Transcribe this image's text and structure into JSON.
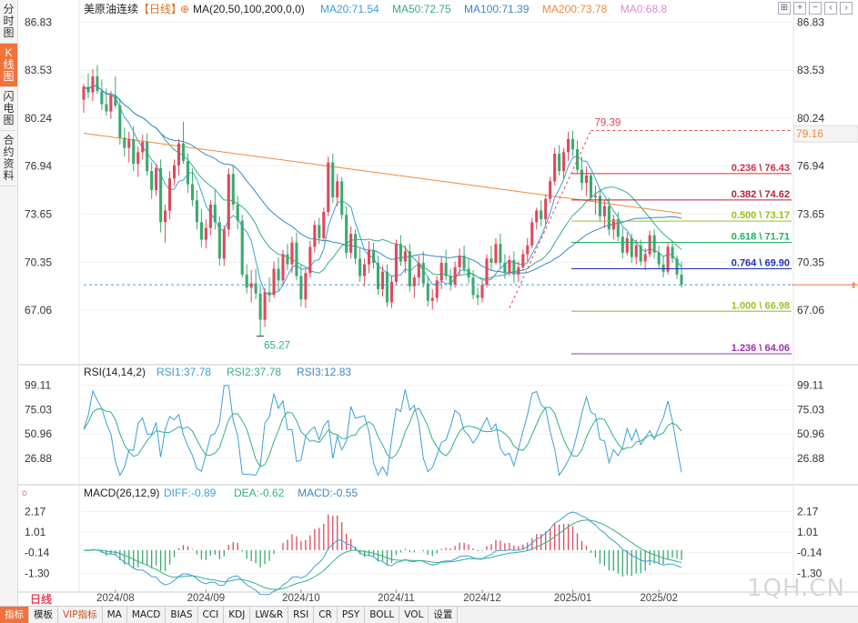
{
  "side_tabs": [
    {
      "label": "分时图",
      "active": false
    },
    {
      "label": "K线图",
      "active": true
    },
    {
      "label": "闪电图",
      "active": false
    },
    {
      "label": "合约资料",
      "active": false
    }
  ],
  "toolbar_icons": [
    "expand-icon",
    "zoom-in-icon",
    "zoom-out-icon",
    "arrow-left-icon",
    "arrow-right-icon"
  ],
  "toolbar_glyphs": [
    "⊞",
    "+",
    "−",
    "‹",
    "›"
  ],
  "period_label": "日线",
  "bottom_tabs": [
    "指标",
    "模板",
    "VIP指标",
    "MA",
    "MACD",
    "BIAS",
    "CCI",
    "KDJ",
    "LW&R",
    "RSI",
    "CR",
    "PSY",
    "BOLL",
    "VOL",
    "设置"
  ],
  "watermark": "1QH.CN",
  "colors": {
    "up": "#e0485a",
    "down": "#3aaa6e",
    "accent": "#f0733c",
    "ma20": "#3aa0d8",
    "ma50": "#32b08a",
    "ma100": "#3a88c8",
    "ma200": "#f08a3c",
    "ma0": "#d88ad8"
  },
  "chart_data": [
    {
      "type": "candlestick",
      "name": "price",
      "title": "美原油连续",
      "period": "【日线】",
      "indicator_label": "MA(20,50,100,200,0,0)",
      "legend": [
        {
          "text": "MA20:71.54",
          "color": "#3aa0d8"
        },
        {
          "text": "MA50:72.75",
          "color": "#32b08a"
        },
        {
          "text": "MA100:71.39",
          "color": "#3a88c8"
        },
        {
          "text": "MA200:73.78",
          "color": "#f08a3c"
        },
        {
          "text": "MA0:68.8",
          "color": "#d88ad8"
        }
      ],
      "y_ticks": [
        86.83,
        83.53,
        80.24,
        76.94,
        73.65,
        70.35,
        67.06
      ],
      "y_tick_labels": [
        "86.83",
        "83.53",
        "80.24",
        "76.94",
        "73.65",
        "70.35",
        "67.06"
      ],
      "ylim": [
        63.5,
        87.6
      ],
      "x_tick_labels": [
        "2024/08",
        "2024/09",
        "2024/10",
        "2024/11",
        "2024/12",
        "2025/01",
        "2025/02"
      ],
      "x_tick_index": [
        7,
        27,
        48,
        69,
        88,
        108,
        127
      ],
      "candles": [
        [
          81.5,
          82.6,
          80.6,
          82.4
        ],
        [
          82.4,
          83.3,
          81.6,
          82.0
        ],
        [
          82.0,
          83.6,
          81.4,
          83.1
        ],
        [
          83.1,
          83.9,
          81.9,
          82.1
        ],
        [
          82.1,
          82.9,
          80.8,
          81.2
        ],
        [
          81.2,
          82.3,
          80.4,
          80.7
        ],
        [
          80.7,
          82.1,
          80.2,
          81.8
        ],
        [
          81.8,
          83.1,
          80.9,
          81.1
        ],
        [
          81.1,
          81.6,
          78.4,
          78.9
        ],
        [
          78.9,
          79.6,
          77.6,
          78.2
        ],
        [
          78.2,
          79.3,
          77.2,
          78.8
        ],
        [
          78.8,
          79.7,
          76.6,
          77.1
        ],
        [
          77.1,
          78.3,
          76.2,
          77.9
        ],
        [
          77.9,
          79.1,
          77.4,
          78.6
        ],
        [
          78.6,
          79.2,
          76.3,
          76.6
        ],
        [
          76.6,
          77.2,
          74.7,
          75.3
        ],
        [
          75.3,
          77.1,
          74.9,
          76.8
        ],
        [
          76.8,
          77.4,
          72.4,
          73.1
        ],
        [
          73.1,
          74.3,
          71.7,
          73.9
        ],
        [
          73.9,
          76.6,
          73.3,
          76.1
        ],
        [
          76.1,
          77.4,
          75.6,
          77.0
        ],
        [
          77.0,
          78.8,
          76.3,
          78.5
        ],
        [
          78.5,
          80.0,
          77.1,
          77.3
        ],
        [
          77.3,
          77.8,
          75.1,
          75.7
        ],
        [
          75.7,
          76.8,
          74.2,
          74.6
        ],
        [
          74.6,
          75.3,
          72.6,
          73.1
        ],
        [
          73.1,
          74.0,
          71.4,
          71.9
        ],
        [
          71.9,
          73.3,
          71.3,
          72.7
        ],
        [
          72.7,
          74.6,
          72.2,
          74.3
        ],
        [
          74.3,
          75.3,
          72.6,
          73.1
        ],
        [
          73.1,
          73.5,
          70.1,
          70.6
        ],
        [
          70.6,
          72.9,
          70.1,
          72.6
        ],
        [
          72.6,
          76.8,
          72.1,
          76.4
        ],
        [
          76.4,
          77.0,
          73.9,
          74.3
        ],
        [
          74.3,
          74.9,
          72.6,
          73.2
        ],
        [
          73.2,
          73.6,
          69.3,
          69.5
        ],
        [
          69.5,
          70.2,
          68.2,
          68.6
        ],
        [
          68.6,
          69.8,
          67.6,
          68.9
        ],
        [
          68.9,
          69.9,
          67.8,
          68.2
        ],
        [
          68.2,
          68.7,
          65.3,
          66.4
        ],
        [
          66.4,
          68.6,
          65.9,
          68.3
        ],
        [
          68.3,
          69.3,
          67.6,
          68.1
        ],
        [
          68.1,
          70.4,
          67.9,
          69.9
        ],
        [
          69.9,
          70.7,
          68.4,
          69.1
        ],
        [
          69.1,
          71.2,
          68.7,
          70.9
        ],
        [
          70.9,
          71.6,
          69.8,
          70.2
        ],
        [
          70.2,
          72.1,
          69.6,
          71.7
        ],
        [
          71.7,
          72.4,
          69.1,
          69.4
        ],
        [
          69.4,
          70.2,
          67.3,
          67.8
        ],
        [
          67.8,
          69.9,
          67.2,
          69.6
        ],
        [
          69.6,
          71.8,
          69.3,
          71.4
        ],
        [
          71.4,
          73.2,
          71.0,
          72.9
        ],
        [
          72.9,
          73.4,
          71.6,
          72.0
        ],
        [
          72.0,
          74.1,
          71.8,
          73.8
        ],
        [
          73.8,
          77.6,
          73.5,
          77.2
        ],
        [
          77.2,
          77.8,
          74.4,
          74.8
        ],
        [
          74.8,
          76.4,
          74.2,
          75.9
        ],
        [
          75.9,
          76.2,
          73.3,
          73.6
        ],
        [
          73.6,
          74.2,
          70.6,
          71.0
        ],
        [
          71.0,
          72.8,
          70.6,
          72.3
        ],
        [
          72.3,
          72.6,
          70.2,
          70.6
        ],
        [
          70.6,
          71.3,
          69.0,
          69.4
        ],
        [
          69.4,
          70.6,
          68.7,
          70.2
        ],
        [
          70.2,
          71.8,
          69.6,
          71.2
        ],
        [
          71.2,
          71.7,
          69.9,
          70.3
        ],
        [
          70.3,
          70.8,
          68.1,
          68.5
        ],
        [
          68.5,
          70.1,
          68.0,
          69.7
        ],
        [
          69.7,
          70.2,
          67.3,
          67.6
        ],
        [
          67.6,
          69.4,
          67.2,
          69.0
        ],
        [
          69.0,
          71.9,
          68.8,
          71.6
        ],
        [
          71.6,
          72.2,
          70.1,
          70.4
        ],
        [
          70.4,
          71.5,
          69.6,
          71.1
        ],
        [
          71.1,
          71.6,
          68.3,
          68.7
        ],
        [
          68.7,
          69.5,
          67.9,
          69.3
        ],
        [
          69.3,
          70.8,
          68.8,
          70.3
        ],
        [
          70.3,
          71.1,
          68.6,
          68.9
        ],
        [
          68.9,
          69.4,
          67.3,
          67.7
        ],
        [
          67.7,
          68.5,
          67.1,
          67.9
        ],
        [
          67.9,
          69.4,
          67.6,
          69.1
        ],
        [
          69.1,
          70.7,
          68.5,
          70.3
        ],
        [
          70.3,
          71.2,
          69.1,
          69.4
        ],
        [
          69.4,
          69.9,
          68.4,
          68.8
        ],
        [
          68.8,
          70.4,
          68.6,
          70.0
        ],
        [
          70.0,
          71.3,
          69.4,
          70.8
        ],
        [
          70.8,
          71.5,
          69.6,
          69.9
        ],
        [
          69.9,
          70.6,
          68.9,
          69.3
        ],
        [
          69.3,
          69.8,
          67.8,
          68.1
        ],
        [
          68.1,
          68.6,
          67.4,
          67.9
        ],
        [
          67.9,
          69.1,
          67.6,
          68.8
        ],
        [
          68.8,
          70.9,
          68.6,
          70.6
        ],
        [
          70.6,
          71.5,
          69.8,
          70.3
        ],
        [
          70.3,
          72.0,
          70.2,
          71.6
        ],
        [
          71.6,
          72.3,
          69.9,
          70.3
        ],
        [
          70.3,
          70.9,
          69.2,
          69.6
        ],
        [
          69.6,
          70.8,
          69.4,
          70.5
        ],
        [
          70.5,
          71.1,
          68.9,
          69.5
        ],
        [
          69.5,
          70.4,
          69.0,
          70.0
        ],
        [
          70.0,
          71.2,
          69.8,
          70.9
        ],
        [
          70.9,
          72.0,
          70.4,
          71.5
        ],
        [
          71.5,
          73.4,
          71.3,
          73.1
        ],
        [
          73.1,
          74.1,
          72.6,
          73.9
        ],
        [
          73.9,
          74.6,
          72.8,
          73.3
        ],
        [
          73.3,
          75.0,
          72.9,
          74.7
        ],
        [
          74.7,
          76.2,
          74.4,
          75.9
        ],
        [
          75.9,
          78.2,
          75.6,
          77.8
        ],
        [
          77.8,
          78.4,
          76.3,
          76.6
        ],
        [
          76.6,
          78.2,
          76.1,
          77.9
        ],
        [
          77.9,
          79.3,
          77.3,
          78.8
        ],
        [
          78.8,
          79.39,
          77.6,
          78.1
        ],
        [
          78.1,
          78.7,
          76.4,
          76.7
        ],
        [
          76.7,
          77.6,
          75.3,
          75.8
        ],
        [
          75.8,
          76.9,
          74.9,
          76.3
        ],
        [
          76.3,
          76.5,
          74.6,
          74.8
        ],
        [
          74.8,
          75.6,
          73.6,
          74.9
        ],
        [
          74.9,
          75.4,
          73.1,
          73.5
        ],
        [
          73.5,
          74.6,
          72.7,
          74.2
        ],
        [
          74.2,
          74.8,
          72.2,
          72.6
        ],
        [
          72.6,
          73.6,
          71.9,
          73.3
        ],
        [
          73.3,
          73.8,
          71.8,
          72.1
        ],
        [
          72.1,
          72.7,
          70.6,
          71.0
        ],
        [
          71.0,
          72.4,
          70.8,
          72.0
        ],
        [
          72.0,
          72.3,
          70.3,
          70.7
        ],
        [
          70.7,
          71.9,
          70.2,
          71.5
        ],
        [
          71.5,
          71.9,
          70.1,
          70.4
        ],
        [
          70.4,
          71.3,
          69.8,
          70.9
        ],
        [
          70.9,
          72.5,
          70.7,
          72.2
        ],
        [
          72.2,
          72.6,
          70.6,
          71.0
        ],
        [
          71.0,
          71.5,
          69.9,
          70.2
        ],
        [
          70.2,
          70.8,
          69.3,
          69.7
        ],
        [
          69.7,
          71.7,
          69.5,
          71.4
        ],
        [
          71.4,
          71.8,
          70.3,
          70.6
        ],
        [
          70.6,
          70.8,
          69.2,
          69.5
        ],
        [
          69.5,
          70.4,
          68.6,
          68.8
        ]
      ],
      "annotations": [
        {
          "text": "79.39",
          "kind": "high"
        },
        {
          "text": "65.27",
          "kind": "low"
        },
        {
          "text": "79.16",
          "kind": "price-tag"
        }
      ],
      "fibonacci": [
        {
          "label": "0.236 \\ 76.43",
          "value": 76.43,
          "color": "#d0304a"
        },
        {
          "label": "0.382 \\ 74.62",
          "value": 74.62,
          "color": "#b0203a"
        },
        {
          "label": "0.500 \\ 73.17",
          "value": 73.17,
          "color": "#9ac020"
        },
        {
          "label": "0.618 \\ 71.71",
          "value": 71.71,
          "color": "#22b060"
        },
        {
          "label": "0.764 \\ 69.90",
          "value": 69.9,
          "color": "#2030b0"
        },
        {
          "label": "1.000 \\ 66.98",
          "value": 66.98,
          "color": "#9ac020"
        },
        {
          "label": "1.236 \\ 64.06",
          "value": 64.06,
          "color": "#9a30b0"
        }
      ],
      "reference_level": 68.8,
      "trend_line": {
        "from": {
          "index": 94,
          "value": 67.2
        },
        "to": {
          "index": 112,
          "value": 79.39
        }
      },
      "swing_high_line": 79.39
    },
    {
      "type": "line",
      "name": "rsi",
      "title": "RSI(14,14,2)",
      "legend": [
        {
          "text": "RSI1:37.78",
          "color": "#3aa0d8"
        },
        {
          "text": "RSI2:37.78",
          "color": "#32b08a"
        },
        {
          "text": "RSI3:12.83",
          "color": "#3a88c8"
        }
      ],
      "y_ticks": [
        99.11,
        75.03,
        50.96,
        26.88
      ],
      "y_tick_labels": [
        "99.11",
        "75.03",
        "50.96",
        "26.88"
      ],
      "ylim": [
        5,
        107
      ]
    },
    {
      "type": "bar",
      "name": "macd",
      "title": "MACD(26,12,9)",
      "legend": [
        {
          "text": "DIFF:-0.89",
          "color": "#3aa0d8"
        },
        {
          "text": "DEA:-0.62",
          "color": "#32b08a"
        },
        {
          "text": "MACD:-0.55",
          "color": "#3a88c8"
        }
      ],
      "y_ticks": [
        2.17,
        1.01,
        -0.14,
        -1.3
      ],
      "y_tick_labels": [
        "2.17",
        "1.01",
        "-0.14",
        "-1.30"
      ],
      "ylim": [
        -2.2,
        2.9
      ]
    }
  ]
}
